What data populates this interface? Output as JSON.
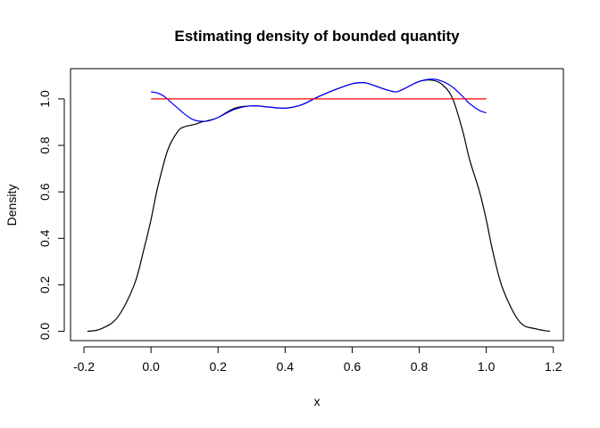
{
  "chart_data": {
    "type": "line",
    "title": "Estimating density of bounded quantity",
    "xlabel": "x",
    "ylabel": "Density",
    "xlim": [
      -0.24,
      1.23
    ],
    "ylim": [
      -0.04,
      1.13
    ],
    "x_ticks": [
      -0.2,
      0.0,
      0.2,
      0.4,
      0.6,
      0.8,
      1.0,
      1.2
    ],
    "x_tick_labels": [
      "-0.2",
      "0.0",
      "0.2",
      "0.4",
      "0.6",
      "0.8",
      "1.0",
      "1.2"
    ],
    "y_ticks": [
      0.0,
      0.2,
      0.4,
      0.6,
      0.8,
      1.0
    ],
    "y_tick_labels": [
      "0.0",
      "0.2",
      "0.4",
      "0.6",
      "0.8",
      "1.0"
    ],
    "grid": false,
    "legend": "none",
    "series": [
      {
        "color": "#000000",
        "x": [
          -0.19,
          -0.15,
          -0.1,
          -0.05,
          -0.02,
          0.0,
          0.02,
          0.05,
          0.08,
          0.1,
          0.13,
          0.15,
          0.18,
          0.2,
          0.25,
          0.3,
          0.35,
          0.4,
          0.45,
          0.5,
          0.55,
          0.6,
          0.63,
          0.65,
          0.7,
          0.73,
          0.75,
          0.8,
          0.84,
          0.87,
          0.9,
          0.93,
          0.95,
          0.98,
          1.0,
          1.02,
          1.05,
          1.1,
          1.15,
          1.19
        ],
        "values": [
          0.0,
          0.01,
          0.06,
          0.2,
          0.36,
          0.48,
          0.62,
          0.78,
          0.86,
          0.88,
          0.89,
          0.9,
          0.91,
          0.92,
          0.96,
          0.97,
          0.965,
          0.96,
          0.975,
          1.01,
          1.04,
          1.065,
          1.07,
          1.065,
          1.04,
          1.03,
          1.04,
          1.075,
          1.08,
          1.06,
          1.0,
          0.86,
          0.74,
          0.6,
          0.48,
          0.34,
          0.18,
          0.04,
          0.01,
          0.0
        ]
      },
      {
        "color": "#0000ff",
        "x": [
          0.0,
          0.02,
          0.04,
          0.06,
          0.08,
          0.1,
          0.12,
          0.14,
          0.17,
          0.2,
          0.25,
          0.3,
          0.35,
          0.4,
          0.45,
          0.5,
          0.55,
          0.6,
          0.63,
          0.65,
          0.7,
          0.73,
          0.75,
          0.8,
          0.84,
          0.87,
          0.9,
          0.93,
          0.95,
          0.98,
          1.0
        ],
        "values": [
          1.03,
          1.025,
          1.01,
          0.985,
          0.96,
          0.935,
          0.915,
          0.905,
          0.905,
          0.92,
          0.955,
          0.97,
          0.965,
          0.96,
          0.975,
          1.01,
          1.04,
          1.065,
          1.07,
          1.065,
          1.04,
          1.03,
          1.04,
          1.075,
          1.085,
          1.075,
          1.05,
          1.01,
          0.98,
          0.95,
          0.94
        ]
      },
      {
        "color": "#ff0000",
        "x": [
          0.0,
          1.0
        ],
        "values": [
          1.0,
          1.0
        ]
      }
    ]
  }
}
